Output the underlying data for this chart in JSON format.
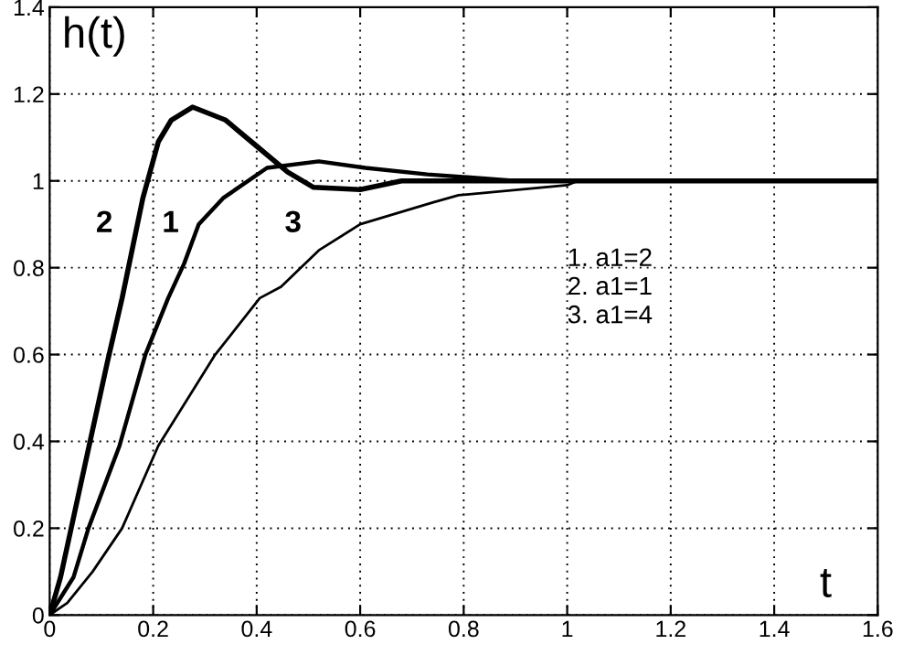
{
  "chart_data": {
    "type": "line",
    "xlabel": "t",
    "ylabel": "h(t)",
    "series": [
      {
        "name": "1",
        "color": "#000000",
        "x": [
          0,
          0.046,
          0.075,
          0.135,
          0.185,
          0.229,
          0.26,
          0.288,
          0.335,
          0.42,
          0.52,
          0.61,
          0.73,
          0.9,
          1.0,
          1.2,
          1.4,
          1.6
        ],
        "values": [
          0,
          0.087,
          0.2,
          0.39,
          0.6,
          0.73,
          0.81,
          0.9,
          0.96,
          1.03,
          1.045,
          1.03,
          1.015,
          1.0,
          1.0,
          1.0,
          1.0,
          1.0
        ]
      },
      {
        "name": "2",
        "color": "#000000",
        "x": [
          0,
          0.021,
          0.058,
          0.111,
          0.14,
          0.18,
          0.21,
          0.235,
          0.276,
          0.34,
          0.4,
          0.46,
          0.51,
          0.6,
          0.68,
          0.8,
          1.0,
          1.2,
          1.4,
          1.6
        ],
        "values": [
          0,
          0.087,
          0.29,
          0.58,
          0.73,
          0.96,
          1.09,
          1.14,
          1.17,
          1.14,
          1.08,
          1.02,
          0.985,
          0.98,
          1.0,
          1.0,
          1.0,
          1.0,
          1.0,
          1.0
        ]
      },
      {
        "name": "3",
        "color": "#000000",
        "x": [
          0,
          0.034,
          0.083,
          0.14,
          0.21,
          0.32,
          0.406,
          0.447,
          0.52,
          0.6,
          0.74,
          0.79,
          1.0,
          1.02,
          1.2,
          1.4,
          1.6
        ],
        "values": [
          0,
          0.028,
          0.1,
          0.2,
          0.39,
          0.6,
          0.73,
          0.756,
          0.84,
          0.9,
          0.95,
          0.967,
          0.99,
          1.0,
          1.0,
          1.0,
          1.0
        ]
      }
    ],
    "annotations": [
      "1. a1=2",
      "2. a1=1",
      "3. a1=4"
    ],
    "xlim": [
      0,
      1.6
    ],
    "ylim": [
      0,
      1.4
    ],
    "xticks": [
      0,
      0.2,
      0.4,
      0.6,
      0.8,
      1,
      1.2,
      1.4,
      1.6
    ],
    "yticks": [
      0,
      0.2,
      0.4,
      0.6,
      0.8,
      1,
      1.2,
      1.4
    ],
    "grid": true,
    "legend": false,
    "marker": "none",
    "line_style": "solid"
  }
}
